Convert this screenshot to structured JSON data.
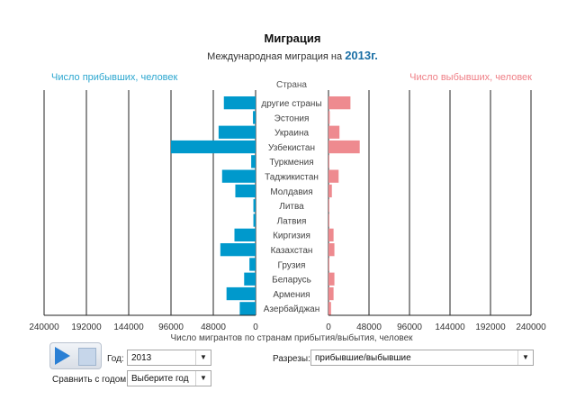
{
  "header": {
    "title": "Миграция",
    "subtitle_prefix": "Международная миграция на",
    "year_label": "2013г."
  },
  "chart_data": {
    "type": "bar",
    "orientation": "horizontal-butterfly",
    "category_axis_title": "Страна",
    "categories": [
      "другие страны",
      "Эстония",
      "Украина",
      "Узбекистан",
      "Туркмения",
      "Таджикистан",
      "Молдавия",
      "Литва",
      "Латвия",
      "Киргизия",
      "Казахстан",
      "Грузия",
      "Беларусь",
      "Армения",
      "Азербайджан"
    ],
    "series": [
      {
        "name": "Число прибывших, человек",
        "side": "left",
        "color": "#0099cc",
        "values": [
          36000,
          3000,
          42000,
          96000,
          5000,
          38000,
          23000,
          2500,
          2500,
          24000,
          40000,
          7000,
          13000,
          33000,
          18000
        ]
      },
      {
        "name": "Число выбывших, человек",
        "side": "right",
        "color": "#ee8a8f",
        "values": [
          26000,
          1500,
          13000,
          37000,
          1000,
          12000,
          4000,
          1000,
          1000,
          6000,
          7000,
          1000,
          7000,
          6000,
          3000
        ]
      }
    ],
    "xlim": [
      0,
      240000
    ],
    "ticks": [
      240000,
      192000,
      144000,
      96000,
      48000,
      0
    ],
    "xlabel": "Число мигрантов по странам прибытия/выбытия, человек",
    "grid": true
  },
  "controls": {
    "year_label": "Год:",
    "year_value": "2013",
    "sections_label": "Разрезы:",
    "sections_value": "прибывшие/выбывшие",
    "compare_label": "Сравнить с годом:",
    "compare_value": "Выберите год",
    "dropdown_arrow": "▼"
  }
}
